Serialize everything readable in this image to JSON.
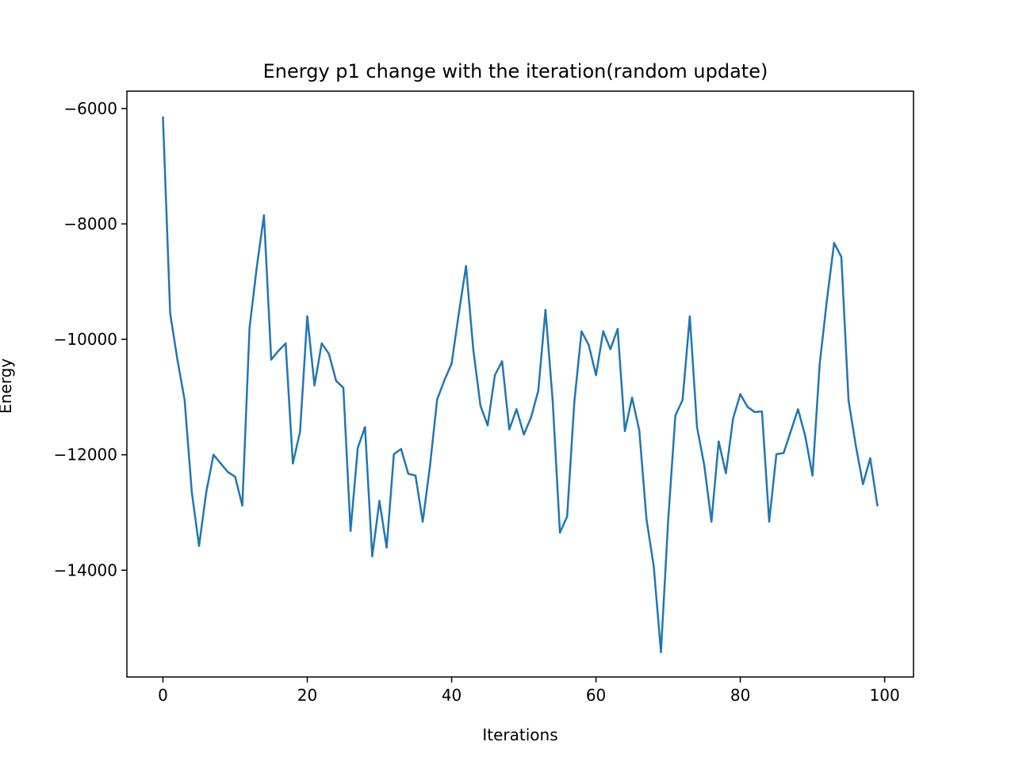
{
  "chart_data": {
    "type": "line",
    "title": "Energy p1 change with the iteration(random update)",
    "xlabel": "Iterations",
    "ylabel": "Energy",
    "xlim": [
      -5,
      104
    ],
    "ylim": [
      -15850,
      -5700
    ],
    "xticks": [
      0,
      20,
      40,
      60,
      80,
      100
    ],
    "yticks": [
      -6000,
      -8000,
      -10000,
      -12000,
      -14000
    ],
    "xtick_labels": [
      "0",
      "20",
      "40",
      "60",
      "80",
      "100"
    ],
    "ytick_labels": [
      "−6000",
      "−8000",
      "−10000",
      "−12000",
      "−14000"
    ],
    "grid": false,
    "legend": "none",
    "series": [
      {
        "color": "#1f77b4",
        "x": [
          0,
          1,
          2,
          3,
          4,
          5,
          6,
          7,
          8,
          9,
          10,
          11,
          12,
          13,
          14,
          15,
          16,
          17,
          18,
          19,
          20,
          21,
          22,
          23,
          24,
          25,
          26,
          27,
          28,
          29,
          30,
          31,
          32,
          33,
          34,
          35,
          36,
          37,
          38,
          39,
          40,
          41,
          42,
          43,
          44,
          45,
          46,
          47,
          48,
          49,
          50,
          51,
          52,
          53,
          54,
          55,
          56,
          57,
          58,
          59,
          60,
          61,
          62,
          63,
          64,
          65,
          66,
          67,
          68,
          69,
          70,
          71,
          72,
          73,
          74,
          75,
          76,
          77,
          78,
          79,
          80,
          81,
          82,
          83,
          84,
          85,
          86,
          87,
          88,
          89,
          90,
          91,
          92,
          93,
          94,
          95,
          96,
          97,
          98,
          99
        ],
        "values": [
          -6150,
          -9550,
          -10350,
          -11050,
          -12650,
          -13580,
          -12650,
          -12000,
          -12150,
          -12300,
          -12380,
          -12880,
          -9800,
          -8750,
          -7850,
          -10350,
          -10200,
          -10070,
          -12150,
          -11600,
          -9600,
          -10800,
          -10070,
          -10250,
          -10720,
          -10840,
          -13320,
          -11880,
          -11520,
          -13760,
          -12800,
          -13610,
          -11990,
          -11900,
          -12330,
          -12360,
          -13160,
          -12200,
          -11040,
          -10710,
          -10420,
          -9550,
          -8730,
          -10170,
          -11150,
          -11490,
          -10620,
          -10380,
          -11560,
          -11210,
          -11650,
          -11350,
          -10890,
          -9490,
          -11070,
          -13350,
          -13070,
          -11080,
          -9860,
          -10100,
          -10620,
          -9860,
          -10170,
          -9820,
          -11590,
          -11010,
          -11580,
          -13120,
          -13930,
          -15420,
          -13140,
          -11320,
          -11050,
          -9600,
          -11520,
          -12180,
          -13160,
          -11770,
          -12320,
          -11370,
          -10950,
          -11170,
          -11260,
          -11250,
          -13160,
          -11990,
          -11970,
          -11590,
          -11210,
          -11680,
          -12360,
          -10430,
          -9320,
          -8330,
          -8570,
          -11060,
          -11840,
          -12510,
          -12060,
          -12880
        ]
      }
    ]
  }
}
